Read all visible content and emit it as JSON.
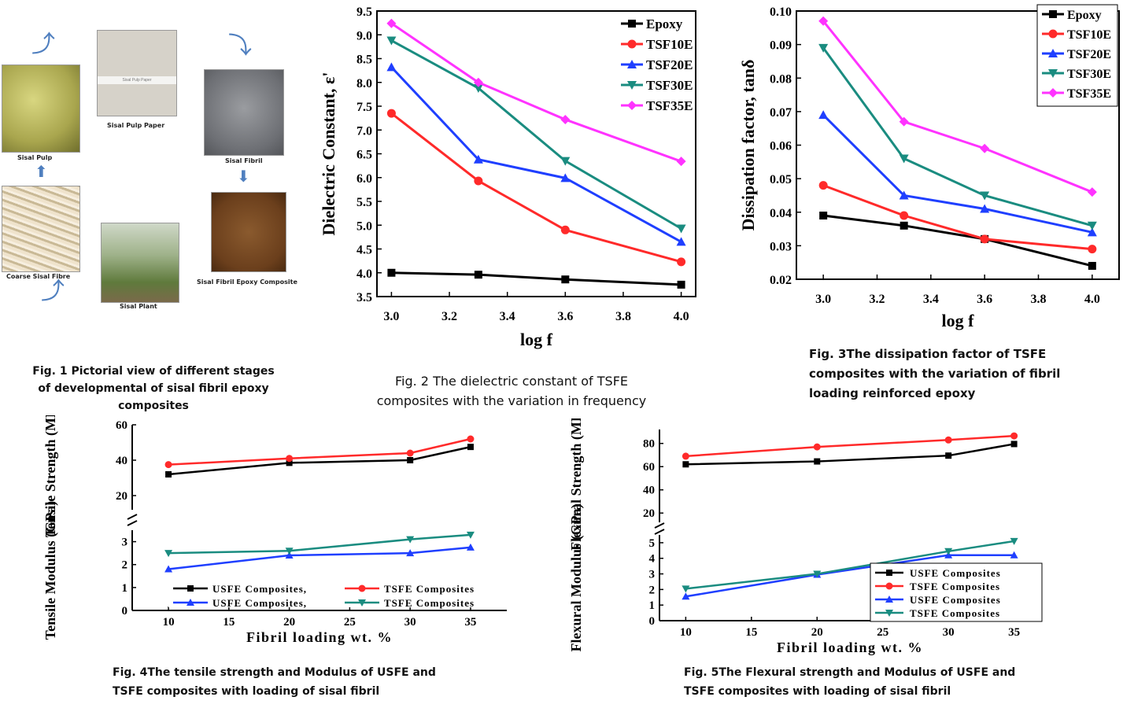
{
  "fig1": {
    "caption_lines": [
      "Fig. 1 Pictorial view of different stages",
      "of developmental of sisal fibril epoxy",
      "composites"
    ],
    "labels": {
      "sisal_pulp": "Sisal Pulp",
      "pulp_paper": "Sisal Pulp Paper",
      "paper_text": "Sisal Pulp Paper",
      "sisal_fibril": "Sisal Fibril",
      "coarse_fibre": "Coarse Sisal Fibre",
      "sisal_plant": "Sisal Plant",
      "composite": "Sisal Fibril Epoxy Composite"
    }
  },
  "captions": {
    "fig2": [
      "Fig. 2 The dielectric constant of TSFE",
      "composites with the variation in frequency"
    ],
    "fig3": [
      "Fig. 3The dissipation factor of TSFE",
      "composites with the variation of fibril",
      "loading reinforced epoxy"
    ],
    "fig4": [
      "Fig. 4The tensile strength and Modulus of USFE and",
      "TSFE composites with loading of sisal fibril"
    ],
    "fig5": [
      "Fig. 5The Flexural strength and Modulus of USFE and",
      "TSFE composites with loading of sisal fibril"
    ]
  },
  "chart_data": [
    {
      "id": "fig2",
      "type": "line",
      "xlabel": "log f",
      "ylabel": "Dielectric Constant, ε'",
      "x": [
        3.0,
        3.3,
        3.6,
        4.0
      ],
      "xlim": [
        2.95,
        4.05
      ],
      "ylim": [
        3.5,
        9.5
      ],
      "xticks": [
        "3.0",
        "3.2",
        "3.4",
        "3.6",
        "3.8",
        "4.0"
      ],
      "yticks": [
        "3.5",
        "4.0",
        "4.5",
        "5.0",
        "5.5",
        "6.0",
        "6.5",
        "7.0",
        "7.5",
        "8.0",
        "8.5",
        "9.0",
        "9.5"
      ],
      "legend": "top-right",
      "series": [
        {
          "name": "Epoxy",
          "values": [
            4.0,
            3.96,
            3.86,
            3.75
          ],
          "color": "#000000",
          "marker": "square"
        },
        {
          "name": "TSF10E",
          "values": [
            7.35,
            5.93,
            4.9,
            4.23
          ],
          "color": "#ff2a2a",
          "marker": "circle"
        },
        {
          "name": "TSF20E",
          "values": [
            8.32,
            6.38,
            5.99,
            4.65
          ],
          "color": "#1f3fff",
          "marker": "triangle-up"
        },
        {
          "name": "TSF30E",
          "values": [
            8.88,
            7.88,
            6.35,
            4.93
          ],
          "color": "#1a8c80",
          "marker": "triangle-down"
        },
        {
          "name": "TSF35E",
          "values": [
            9.24,
            8.0,
            7.22,
            6.34
          ],
          "color": "#ff33ff",
          "marker": "diamond"
        }
      ]
    },
    {
      "id": "fig3",
      "type": "line",
      "xlabel": "log f",
      "ylabel": "Dissipation factor, tanδ",
      "x": [
        3.0,
        3.3,
        3.6,
        4.0
      ],
      "xlim": [
        2.9,
        4.1
      ],
      "ylim": [
        0.02,
        0.1
      ],
      "xticks": [
        "3.0",
        "3.2",
        "3.4",
        "3.6",
        "3.8",
        "4.0"
      ],
      "yticks": [
        "0.02",
        "0.03",
        "0.04",
        "0.05",
        "0.06",
        "0.07",
        "0.08",
        "0.09",
        "0.10"
      ],
      "legend": "top-right",
      "series": [
        {
          "name": "Epoxy",
          "values": [
            0.039,
            0.036,
            0.032,
            0.024
          ],
          "color": "#000000",
          "marker": "square"
        },
        {
          "name": "TSF10E",
          "values": [
            0.048,
            0.039,
            0.032,
            0.029
          ],
          "color": "#ff2a2a",
          "marker": "circle"
        },
        {
          "name": "TSF20E",
          "values": [
            0.069,
            0.045,
            0.041,
            0.034
          ],
          "color": "#1f3fff",
          "marker": "triangle-up"
        },
        {
          "name": "TSF30E",
          "values": [
            0.089,
            0.056,
            0.045,
            0.036
          ],
          "color": "#1a8c80",
          "marker": "triangle-down"
        },
        {
          "name": "TSF35E",
          "values": [
            0.097,
            0.067,
            0.059,
            0.046
          ],
          "color": "#ff33ff",
          "marker": "diamond"
        }
      ]
    },
    {
      "id": "fig4",
      "type": "line",
      "xlabel": "Fibril loading wt. %",
      "ylabel_top": "Tensile Strength (MPa)",
      "ylabel_bottom": "Tensile Modulus (GPa)",
      "x": [
        10,
        20,
        30,
        35
      ],
      "xlim": [
        7,
        38
      ],
      "xticks": [
        "10",
        "15",
        "20",
        "25",
        "30",
        "35"
      ],
      "top_ylim": [
        12,
        60
      ],
      "top_yticks": [
        "20",
        "40",
        "60"
      ],
      "bottom_ylim": [
        0,
        3.5
      ],
      "bottom_yticks": [
        "0",
        "1",
        "2",
        "3"
      ],
      "legend": "bottom",
      "top_series": [
        {
          "name": "USFE Composites,",
          "values": [
            32,
            38.5,
            40,
            47.5
          ],
          "color": "#000000",
          "marker": "square"
        },
        {
          "name": "TSFE Composites",
          "values": [
            37.5,
            41,
            44,
            52
          ],
          "color": "#ff2a2a",
          "marker": "circle"
        }
      ],
      "bottom_series": [
        {
          "name": "USFE Composites,",
          "values": [
            1.8,
            2.4,
            2.5,
            2.75
          ],
          "color": "#1f3fff",
          "marker": "triangle-up"
        },
        {
          "name": "TSFE Composites",
          "values": [
            2.5,
            2.6,
            3.1,
            3.3
          ],
          "color": "#1a8c80",
          "marker": "triangle-down"
        }
      ]
    },
    {
      "id": "fig5",
      "type": "line",
      "xlabel": "Fibril loading wt. %",
      "ylabel_top": "Flexural Strength (MPa)",
      "ylabel_bottom": "Flexural Modulus (GPa)",
      "x": [
        10,
        20,
        30,
        35
      ],
      "xlim": [
        8,
        37
      ],
      "xticks": [
        "10",
        "15",
        "20",
        "25",
        "30",
        "35"
      ],
      "top_ylim": [
        12,
        92
      ],
      "top_yticks": [
        "20",
        "40",
        "60",
        "80"
      ],
      "bottom_ylim": [
        0,
        5.5
      ],
      "bottom_yticks": [
        "0",
        "1",
        "2",
        "3",
        "4",
        "5"
      ],
      "legend": "bottom-right",
      "top_series": [
        {
          "name": "USFE Composites",
          "values": [
            62,
            64.5,
            69.5,
            79.5
          ],
          "color": "#000000",
          "marker": "square"
        },
        {
          "name": "TSFE Composites",
          "values": [
            69,
            77,
            83,
            86.5
          ],
          "color": "#ff2a2a",
          "marker": "circle"
        }
      ],
      "bottom_series": [
        {
          "name": "USFE Composites",
          "values": [
            1.55,
            2.95,
            4.2,
            4.2
          ],
          "color": "#1f3fff",
          "marker": "triangle-up"
        },
        {
          "name": "TSFE Composites",
          "values": [
            2.05,
            3.0,
            4.45,
            5.1
          ],
          "color": "#1a8c80",
          "marker": "triangle-down"
        }
      ]
    }
  ]
}
